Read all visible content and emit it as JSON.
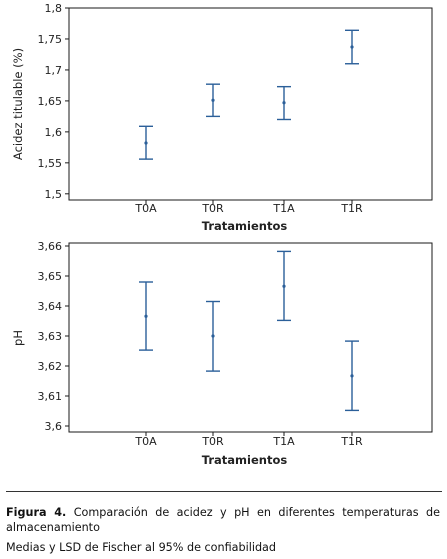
{
  "chart_data": [
    {
      "type": "scatter",
      "error_bars": true,
      "categories": [
        "T0A",
        "T0R",
        "T1A",
        "T1R"
      ],
      "values": [
        1.582,
        1.651,
        1.647,
        1.737
      ],
      "lower": [
        1.556,
        1.625,
        1.62,
        1.71
      ],
      "upper": [
        1.609,
        1.677,
        1.673,
        1.764
      ],
      "xlabel": "Tratamientos",
      "ylabel": "Acidez titulable (%)",
      "ylim": [
        1.49,
        1.8
      ],
      "yticks": [
        1.5,
        1.55,
        1.6,
        1.65,
        1.7,
        1.75,
        1.8
      ],
      "ytick_labels": [
        "1,5",
        "1,55",
        "1,6",
        "1,65",
        "1,7",
        "1,75",
        "1,8"
      ],
      "grid": false
    },
    {
      "type": "scatter",
      "error_bars": true,
      "categories": [
        "T0A",
        "T0R",
        "T1A",
        "T1R"
      ],
      "values": [
        3.6366,
        3.63,
        3.6466,
        3.6167
      ],
      "lower": [
        3.6253,
        3.6183,
        3.6352,
        3.6052
      ],
      "upper": [
        3.648,
        3.6415,
        3.6582,
        3.6283
      ],
      "xlabel": "Tratamientos",
      "ylabel": "pH",
      "ylim": [
        3.598,
        3.661
      ],
      "yticks": [
        3.6,
        3.61,
        3.62,
        3.63,
        3.64,
        3.65,
        3.66
      ],
      "ytick_labels": [
        "3,6",
        "3,61",
        "3,62",
        "3,63",
        "3,64",
        "3,65",
        "3,66"
      ],
      "grid": false
    }
  ],
  "caption": {
    "figure_label": "Figura 4.",
    "figure_text": " Comparación de acidez y pH en diferentes temperaturas de almacenamiento",
    "note": "Medias y LSD de Fischer al 95% de confiabilidad"
  }
}
